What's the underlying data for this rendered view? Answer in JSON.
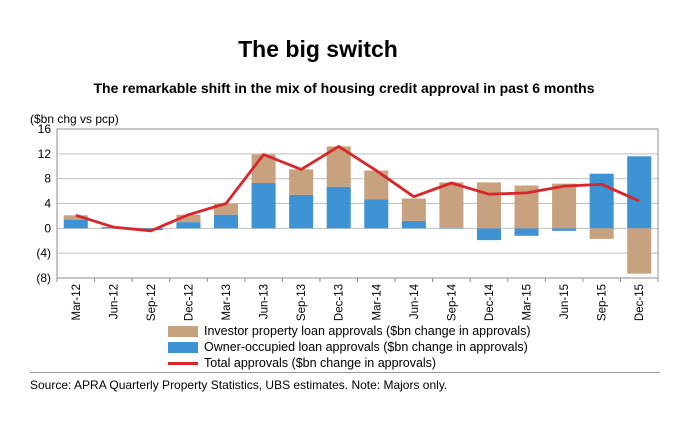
{
  "title": "The big switch",
  "subtitle": "The remarkable shift in the mix of housing credit approval in past 6 months",
  "unit_label": "($bn chg vs pcp)",
  "source": "Source:  APRA Quarterly Property Statistics, UBS estimates. Note: Majors only.",
  "colors": {
    "investor": "#c8a27f",
    "owner": "#3d93d3",
    "total": "#d9262b",
    "grid": "#bfbfbf"
  },
  "chart_data": {
    "type": "bar",
    "stacked": true,
    "y_tick_labels": [
      "16",
      "12",
      "8",
      "4",
      "0",
      "(4)",
      "(8)"
    ],
    "y_tick_values": [
      16,
      12,
      8,
      4,
      0,
      -4,
      -8
    ],
    "ylim": [
      -8,
      16
    ],
    "categories": [
      "Mar-12",
      "Jun-12",
      "Sep-12",
      "Dec-12",
      "Mar-13",
      "Jun-13",
      "Sep-13",
      "Dec-13",
      "Mar-14",
      "Jun-14",
      "Sep-14",
      "Dec-14",
      "Mar-15",
      "Jun-15",
      "Sep-15",
      "Dec-15"
    ],
    "series": [
      {
        "name": "Investor property loan approvals ($bn change in approvals)",
        "kind": "bar",
        "values": [
          0.7,
          0.0,
          0.0,
          1.2,
          1.8,
          4.6,
          4.1,
          6.5,
          4.6,
          3.6,
          7.3,
          7.4,
          6.9,
          7.2,
          -1.7,
          -7.3
        ]
      },
      {
        "name": "Owner-occupied loan approvals ($bn change in approvals)",
        "kind": "bar",
        "values": [
          1.4,
          0.2,
          -0.3,
          1.0,
          2.2,
          7.3,
          5.4,
          6.7,
          4.7,
          1.2,
          0.1,
          -1.9,
          -1.2,
          -0.4,
          8.8,
          11.6
        ]
      },
      {
        "name": "Total approvals ($bn change in approvals)",
        "kind": "line",
        "values": [
          2.1,
          0.2,
          -0.4,
          2.2,
          4.0,
          11.9,
          9.5,
          13.2,
          9.3,
          5.1,
          7.3,
          5.5,
          5.7,
          6.8,
          7.1,
          4.4
        ]
      }
    ],
    "grid": "horizontal",
    "legend_position": "bottom"
  }
}
